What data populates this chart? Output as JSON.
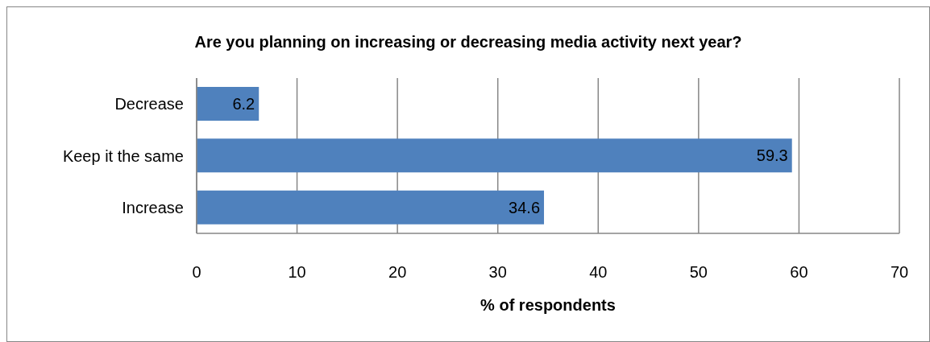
{
  "chart_data": {
    "type": "bar",
    "orientation": "horizontal",
    "title": "Are you planning on increasing or decreasing media activity next year?",
    "xlabel": "% of respondents",
    "categories": [
      "Decrease",
      "Keep it the same",
      "Increase"
    ],
    "values": [
      6.2,
      59.3,
      34.6
    ],
    "color": "#4f81bd",
    "xlim": [
      0,
      70
    ],
    "xticks": [
      0,
      10,
      20,
      30,
      40,
      50,
      60,
      70
    ],
    "grid": "x",
    "data_labels": true
  }
}
